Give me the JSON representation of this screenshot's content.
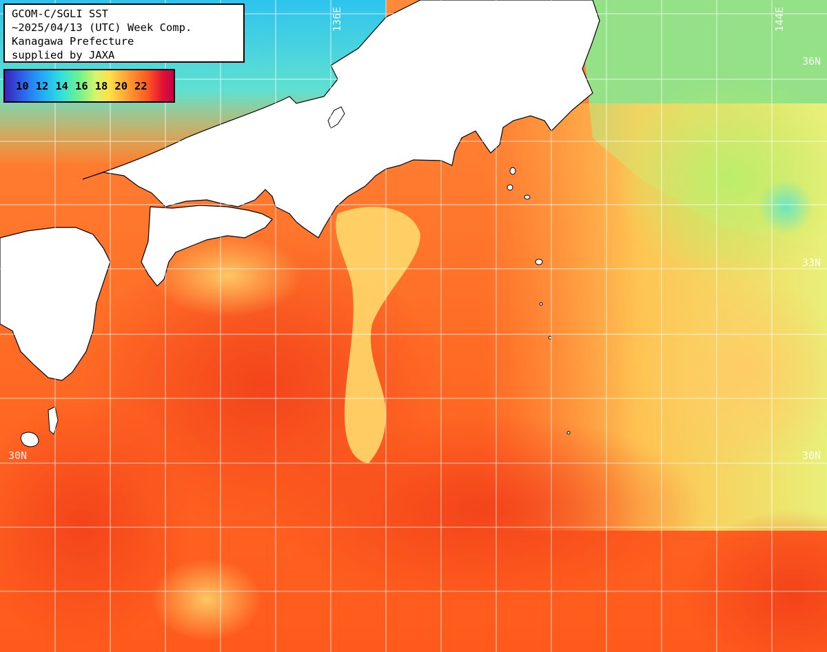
{
  "title": {
    "lines": [
      "GCOM-C/SGLI SST",
      "~2025/04/13 (UTC) Week Comp.",
      "Kanagawa Prefecture",
      "supplied by JAXA"
    ]
  },
  "legend": {
    "ticks": [
      "10",
      "12",
      "14",
      "16",
      "18",
      "20",
      "22"
    ],
    "colors": [
      "#3a22b8",
      "#2a6cf2",
      "#22b4f5",
      "#33e2d8",
      "#6ff28e",
      "#d6f56a",
      "#ffe04a",
      "#ffa434",
      "#ff5c22",
      "#e41432",
      "#c0004a"
    ]
  },
  "grid_labels": {
    "lon_136": "136E",
    "lon_144": "144E",
    "lat_36_right": "36N",
    "lat_33_right": "33N",
    "lat_30_left": "30N",
    "lat_30_right": "30N"
  },
  "colors": {
    "land": "#ffffff",
    "coastline": "#000000",
    "grid": "#ffffff",
    "warm_sea": "#ff5a1c",
    "mild_sea": "#ffb050",
    "cool_sea": "#34d6ea"
  }
}
